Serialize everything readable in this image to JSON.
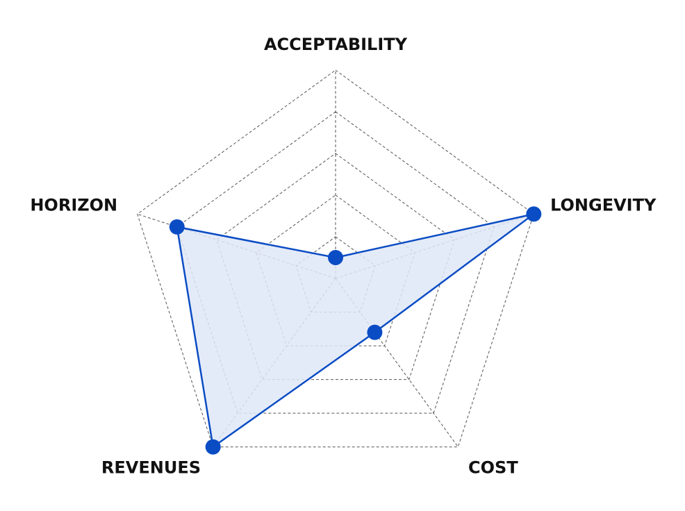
{
  "chart_data": {
    "type": "radar",
    "axes": [
      "ACCEPTABILITY",
      "LONGEVITY",
      "COST",
      "REVENUES",
      "HORIZON"
    ],
    "max": 5,
    "rings": 5,
    "series": [
      {
        "values": [
          0.5,
          5,
          1.6,
          5,
          4
        ]
      }
    ],
    "grid": true,
    "legend": "none",
    "colors": {
      "line": "#0a4cc4",
      "fill": "#dfe8f7",
      "marker": "#0a4cc4",
      "grid": "#555555"
    }
  }
}
